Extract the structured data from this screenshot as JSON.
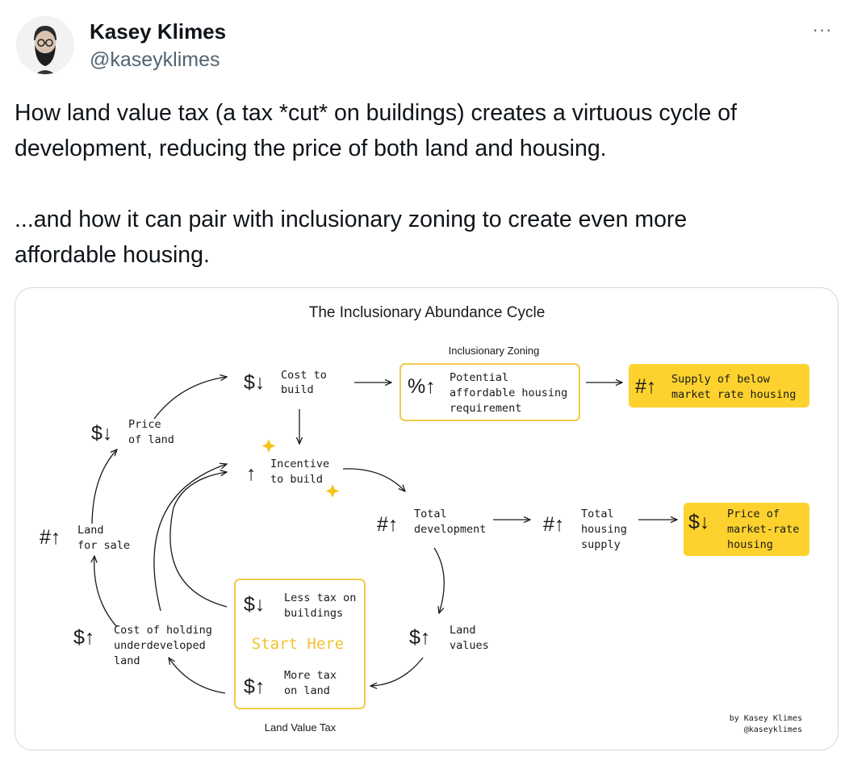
{
  "author": {
    "name": "Kasey Klimes",
    "handle": "@kaseyklimes",
    "avatar_icon": "bearded-man-avatar-icon"
  },
  "more_icon": "more-horizontal-icon",
  "more_glyph": "···",
  "tweet": {
    "paragraph1_line1": "How land value tax (a tax *cut* on buildings) creates a virtuous cycle of",
    "paragraph1_line2": "development, reducing the price of both land and housing.",
    "paragraph2_line1": "...and how it can pair with inclusionary zoning to create even more",
    "paragraph2_line2": "affordable housing."
  },
  "diagram": {
    "title": "The Inclusionary Abundance Cycle",
    "group_inclusionary_zoning": "Inclusionary Zoning",
    "group_land_value_tax": "Land Value Tax",
    "credit_line1": "by Kasey Klimes",
    "credit_line2": "@kaseyklimes",
    "start_here": "Start Here",
    "colors": {
      "highlight": "#fdd22e",
      "box_border": "#f2c94c",
      "star": "#f5c518",
      "text": "#1a1a1a"
    },
    "nodes": {
      "cost_to_build": {
        "symbol": "$↓",
        "line1": "Cost to",
        "line2": "build"
      },
      "potential_affordable": {
        "symbol": "%↑",
        "line1": "Potential",
        "line2": "affordable housing",
        "line3": "requirement"
      },
      "supply_below_market": {
        "symbol": "#↑",
        "line1": "Supply of below",
        "line2": "market rate housing"
      },
      "price_of_land": {
        "symbol": "$↓",
        "line1": "Price",
        "line2": "of land"
      },
      "incentive_to_build": {
        "symbol": "↑",
        "line1": "Incentive",
        "line2": "to build"
      },
      "total_development": {
        "symbol": "#↑",
        "line1": "Total",
        "line2": "development"
      },
      "total_housing_supply": {
        "symbol": "#↑",
        "line1": "Total",
        "line2": "housing",
        "line3": "supply"
      },
      "price_market_rate": {
        "symbol": "$↓",
        "line1": "Price of",
        "line2": "market-rate",
        "line3": "housing"
      },
      "land_for_sale": {
        "symbol": "#↑",
        "line1": "Land",
        "line2": "for sale"
      },
      "less_tax_buildings": {
        "symbol": "$↓",
        "line1": "Less tax on",
        "line2": "buildings"
      },
      "more_tax_land": {
        "symbol": "$↑",
        "line1": "More tax",
        "line2": "on land"
      },
      "land_values": {
        "symbol": "$↑",
        "line1": "Land",
        "line2": "values"
      },
      "cost_holding": {
        "symbol": "$↑",
        "line1": "Cost of holding",
        "line2": "underdeveloped",
        "line3": "land"
      }
    }
  }
}
